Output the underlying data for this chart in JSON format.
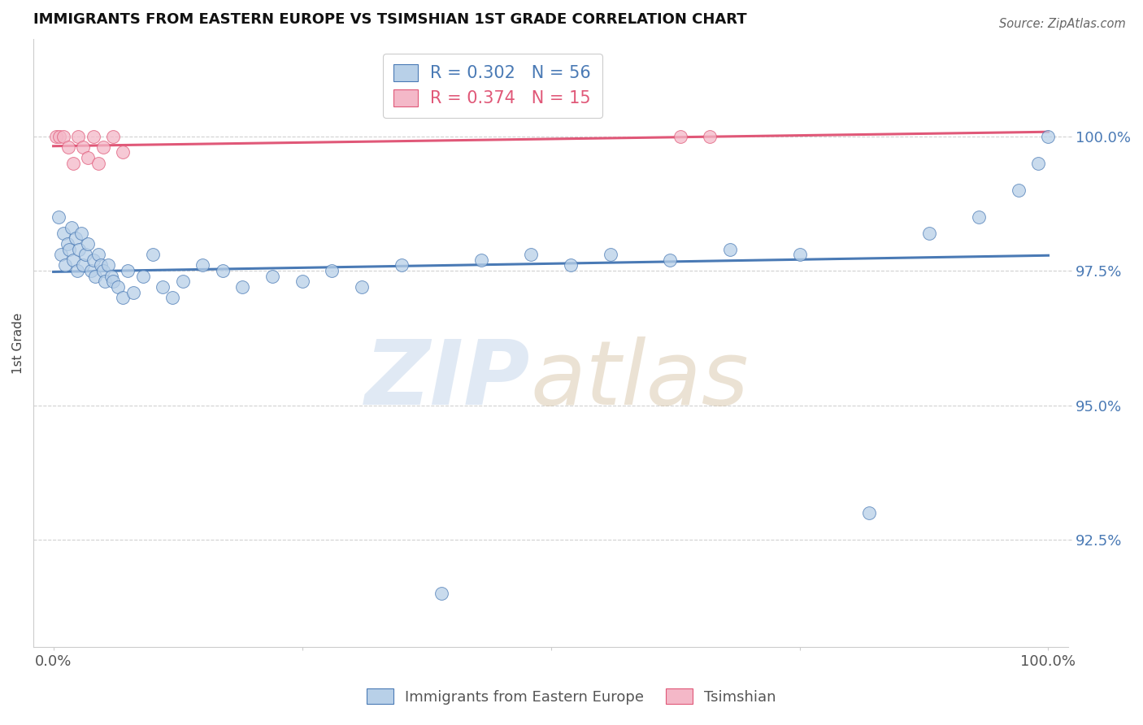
{
  "title": "IMMIGRANTS FROM EASTERN EUROPE VS TSIMSHIAN 1ST GRADE CORRELATION CHART",
  "source": "Source: ZipAtlas.com",
  "ylabel": "1st Grade",
  "blue_R": 0.302,
  "blue_N": 56,
  "pink_R": 0.374,
  "pink_N": 15,
  "blue_color": "#b8d0e8",
  "pink_color": "#f4b8c8",
  "blue_line_color": "#4a7ab5",
  "pink_line_color": "#e05878",
  "legend_label_blue": "Immigrants from Eastern Europe",
  "legend_label_pink": "Tsimshian",
  "blue_x": [
    0.5,
    0.8,
    1.0,
    1.2,
    1.4,
    1.6,
    1.8,
    2.0,
    2.2,
    2.4,
    2.6,
    2.8,
    3.0,
    3.2,
    3.5,
    3.8,
    4.0,
    4.2,
    4.5,
    4.8,
    5.0,
    5.2,
    5.5,
    5.8,
    6.0,
    6.5,
    7.0,
    7.5,
    8.0,
    9.0,
    10.0,
    11.0,
    12.0,
    13.0,
    15.0,
    17.0,
    19.0,
    22.0,
    25.0,
    28.0,
    31.0,
    35.0,
    39.0,
    43.0,
    48.0,
    52.0,
    56.0,
    62.0,
    68.0,
    75.0,
    82.0,
    88.0,
    93.0,
    97.0,
    99.0,
    100.0
  ],
  "blue_y": [
    98.5,
    97.8,
    98.2,
    97.6,
    98.0,
    97.9,
    98.3,
    97.7,
    98.1,
    97.5,
    97.9,
    98.2,
    97.6,
    97.8,
    98.0,
    97.5,
    97.7,
    97.4,
    97.8,
    97.6,
    97.5,
    97.3,
    97.6,
    97.4,
    97.3,
    97.2,
    97.0,
    97.5,
    97.1,
    97.4,
    97.8,
    97.2,
    97.0,
    97.3,
    97.6,
    97.5,
    97.2,
    97.4,
    97.3,
    97.5,
    97.2,
    97.6,
    91.5,
    97.7,
    97.8,
    97.6,
    97.8,
    97.7,
    97.9,
    97.8,
    93.0,
    98.2,
    98.5,
    99.0,
    99.5,
    100.0
  ],
  "pink_x": [
    0.3,
    0.6,
    1.0,
    1.5,
    2.0,
    2.5,
    3.0,
    3.5,
    4.0,
    4.5,
    5.0,
    6.0,
    7.0,
    63.0,
    66.0
  ],
  "pink_y": [
    100.0,
    100.0,
    100.0,
    99.8,
    99.5,
    100.0,
    99.8,
    99.6,
    100.0,
    99.5,
    99.8,
    100.0,
    99.7,
    100.0,
    100.0
  ],
  "xlim": [
    -2,
    102
  ],
  "ylim": [
    90.5,
    101.8
  ],
  "yticks": [
    92.5,
    95.0,
    97.5,
    100.0
  ],
  "ytick_labels": [
    "92.5%",
    "95.0%",
    "97.5%",
    "100.0%"
  ],
  "xtick_vals": [
    0,
    25,
    50,
    75,
    100
  ],
  "xtick_labels": [
    "0.0%",
    "",
    "",
    "",
    "100.0%"
  ],
  "background_color": "#ffffff",
  "grid_color": "#cccccc"
}
